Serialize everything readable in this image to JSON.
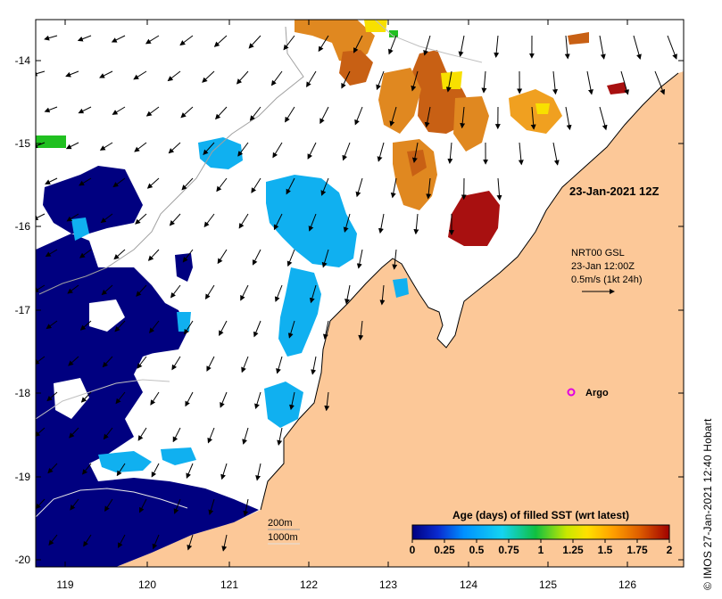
{
  "map": {
    "lon_ticks": [
      "119",
      "120",
      "121",
      "122",
      "123",
      "124",
      "125",
      "126"
    ],
    "lat_ticks": [
      "-14",
      "-15",
      "-16",
      "-17",
      "-18",
      "-19",
      "-20"
    ],
    "date_label": "23-Jan-2021 12Z",
    "wind_legend": {
      "line1": "NRT00 GSL",
      "line2": "23-Jan 12:00Z",
      "line3": "0.5m/s (1kt 24h)"
    },
    "argo_label": "Argo",
    "isobaths": [
      "200m",
      "1000m"
    ],
    "credit": "© IMOS 27-Jan-2021 12:40 Hobart"
  },
  "colorbar": {
    "title": "Age (days) of filled SST (wrt latest)",
    "ticks": [
      "0",
      "0.25",
      "0.5",
      "0.75",
      "1",
      "1.25",
      "1.5",
      "1.75",
      "2"
    ],
    "min": 0,
    "max": 2,
    "colors": [
      "#000080",
      "#0a2bd0",
      "#0090ff",
      "#14d4f0",
      "#10c040",
      "#c8e800",
      "#ffe000",
      "#ffa000",
      "#e06000",
      "#a00000"
    ]
  },
  "colors": {
    "land": "#fcc898",
    "old_sst": "#000080",
    "mid_sst": "#10b0f0",
    "recent_sst": "#d88018"
  }
}
